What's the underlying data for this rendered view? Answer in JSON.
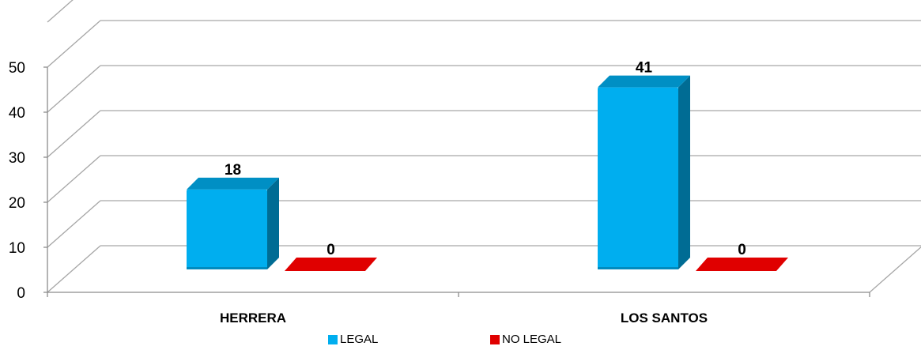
{
  "chart_data": {
    "type": "bar",
    "title": "",
    "xlabel": "",
    "ylabel": "",
    "categories": [
      "HERRERA",
      "LOS SANTOS"
    ],
    "series": [
      {
        "name": "LEGAL",
        "values": [
          18,
          41
        ],
        "color": "#00AEEF"
      },
      {
        "name": "NO LEGAL",
        "values": [
          0,
          0
        ],
        "color": "#E00000"
      }
    ],
    "ylim": [
      0,
      60
    ],
    "yticks": [
      0,
      10,
      20,
      30,
      40,
      50
    ],
    "grid": true,
    "legend_position": "bottom",
    "style": "3d-clustered"
  }
}
